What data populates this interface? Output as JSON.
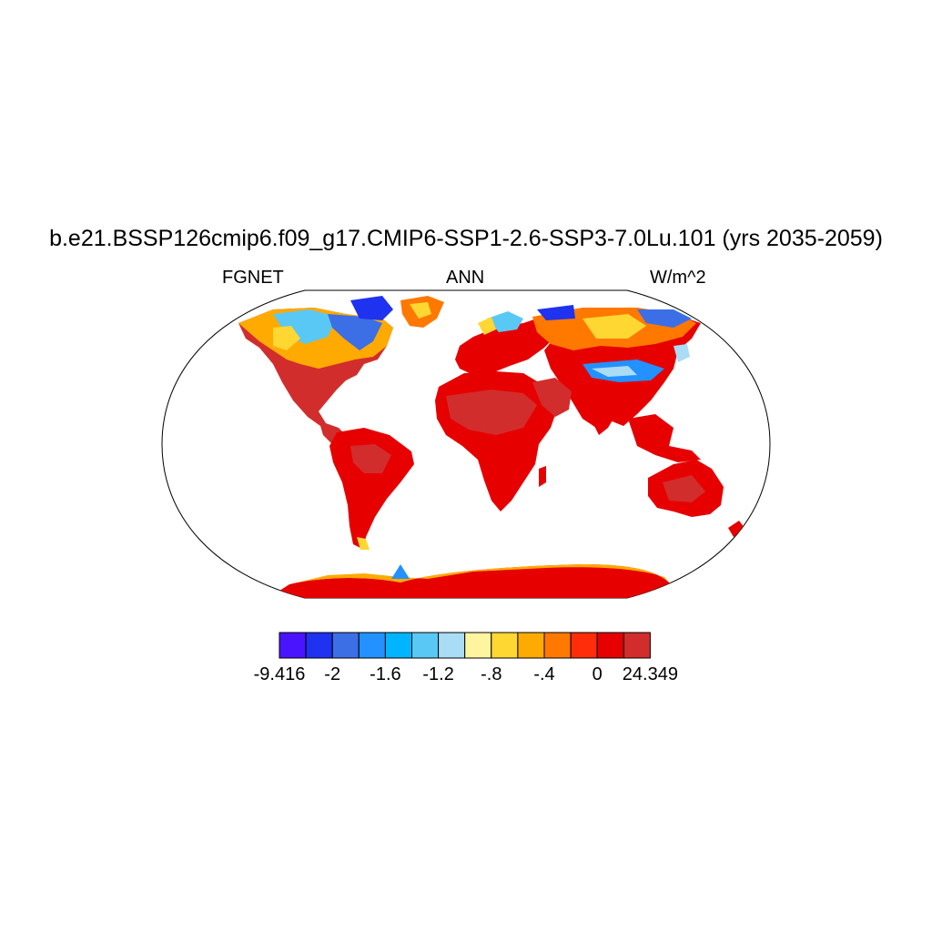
{
  "title": "b.e21.BSSP126cmip6.f09_g17.CMIP6-SSP1-2.6-SSP3-7.0Lu.101 (yrs 2035-2059)",
  "left_label": "FGNET",
  "center_label": "ANN",
  "right_label": "W/m^2",
  "colorbar": {
    "colors": [
      "#4b14ff",
      "#1e32f0",
      "#3c6ee6",
      "#2391ff",
      "#00b4ff",
      "#5ac8f5",
      "#aadcf5",
      "#fff5a0",
      "#ffd732",
      "#ffaa00",
      "#ff7800",
      "#ff2d0a",
      "#e60000",
      "#d22d2d"
    ],
    "labels": [
      "-9.416",
      "-2",
      "-1.6",
      "-1.2",
      "-.8",
      "-.4",
      "0",
      "24.349"
    ]
  },
  "legend_items": {
    "strong_positive": "#d22d2d",
    "positive": "#e60000",
    "slight_positive": "#ff2d0a",
    "negative_warm": "#ffaa00",
    "negative_cool": "#5ac8f5",
    "strong_negative": "#1e32f0"
  }
}
